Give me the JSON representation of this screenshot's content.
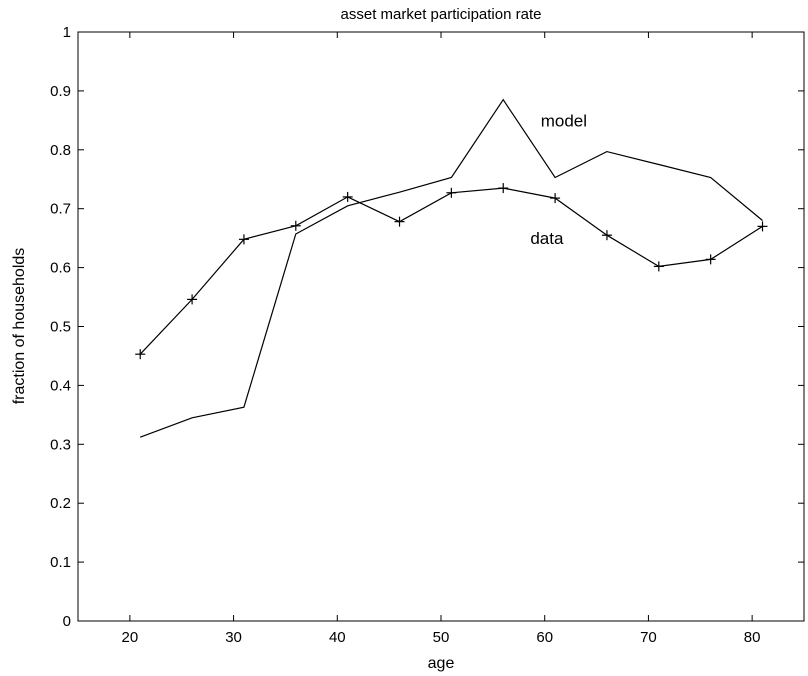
{
  "chart_data": {
    "type": "line",
    "title": "asset market participation rate",
    "xlabel": "age",
    "ylabel": "fraction of households",
    "xlim": [
      15,
      85
    ],
    "ylim": [
      0,
      1
    ],
    "xticks": [
      20,
      30,
      40,
      50,
      60,
      70,
      80
    ],
    "yticks": [
      0,
      0.1,
      0.2,
      0.3,
      0.4,
      0.5,
      0.6,
      0.7,
      0.8,
      0.9,
      1
    ],
    "grid": false,
    "legend": "none",
    "series": [
      {
        "name": "model",
        "marker": "none",
        "x": [
          21,
          26,
          31,
          36,
          41,
          46,
          51,
          56,
          61,
          66,
          71,
          76,
          81
        ],
        "y": [
          0.312,
          0.345,
          0.363,
          0.657,
          0.705,
          0.728,
          0.753,
          0.885,
          0.753,
          0.797,
          0.775,
          0.753,
          0.68
        ]
      },
      {
        "name": "data",
        "marker": "+",
        "x": [
          21,
          26,
          31,
          36,
          41,
          46,
          51,
          56,
          61,
          66,
          71,
          76,
          81
        ],
        "y": [
          0.453,
          0.546,
          0.648,
          0.671,
          0.72,
          0.678,
          0.727,
          0.735,
          0.718,
          0.655,
          0.602,
          0.614,
          0.67
        ]
      }
    ],
    "annotations": [
      {
        "text": "model",
        "x": 60,
        "y": 0.85
      },
      {
        "text": "data",
        "x": 59,
        "y": 0.65
      }
    ]
  }
}
